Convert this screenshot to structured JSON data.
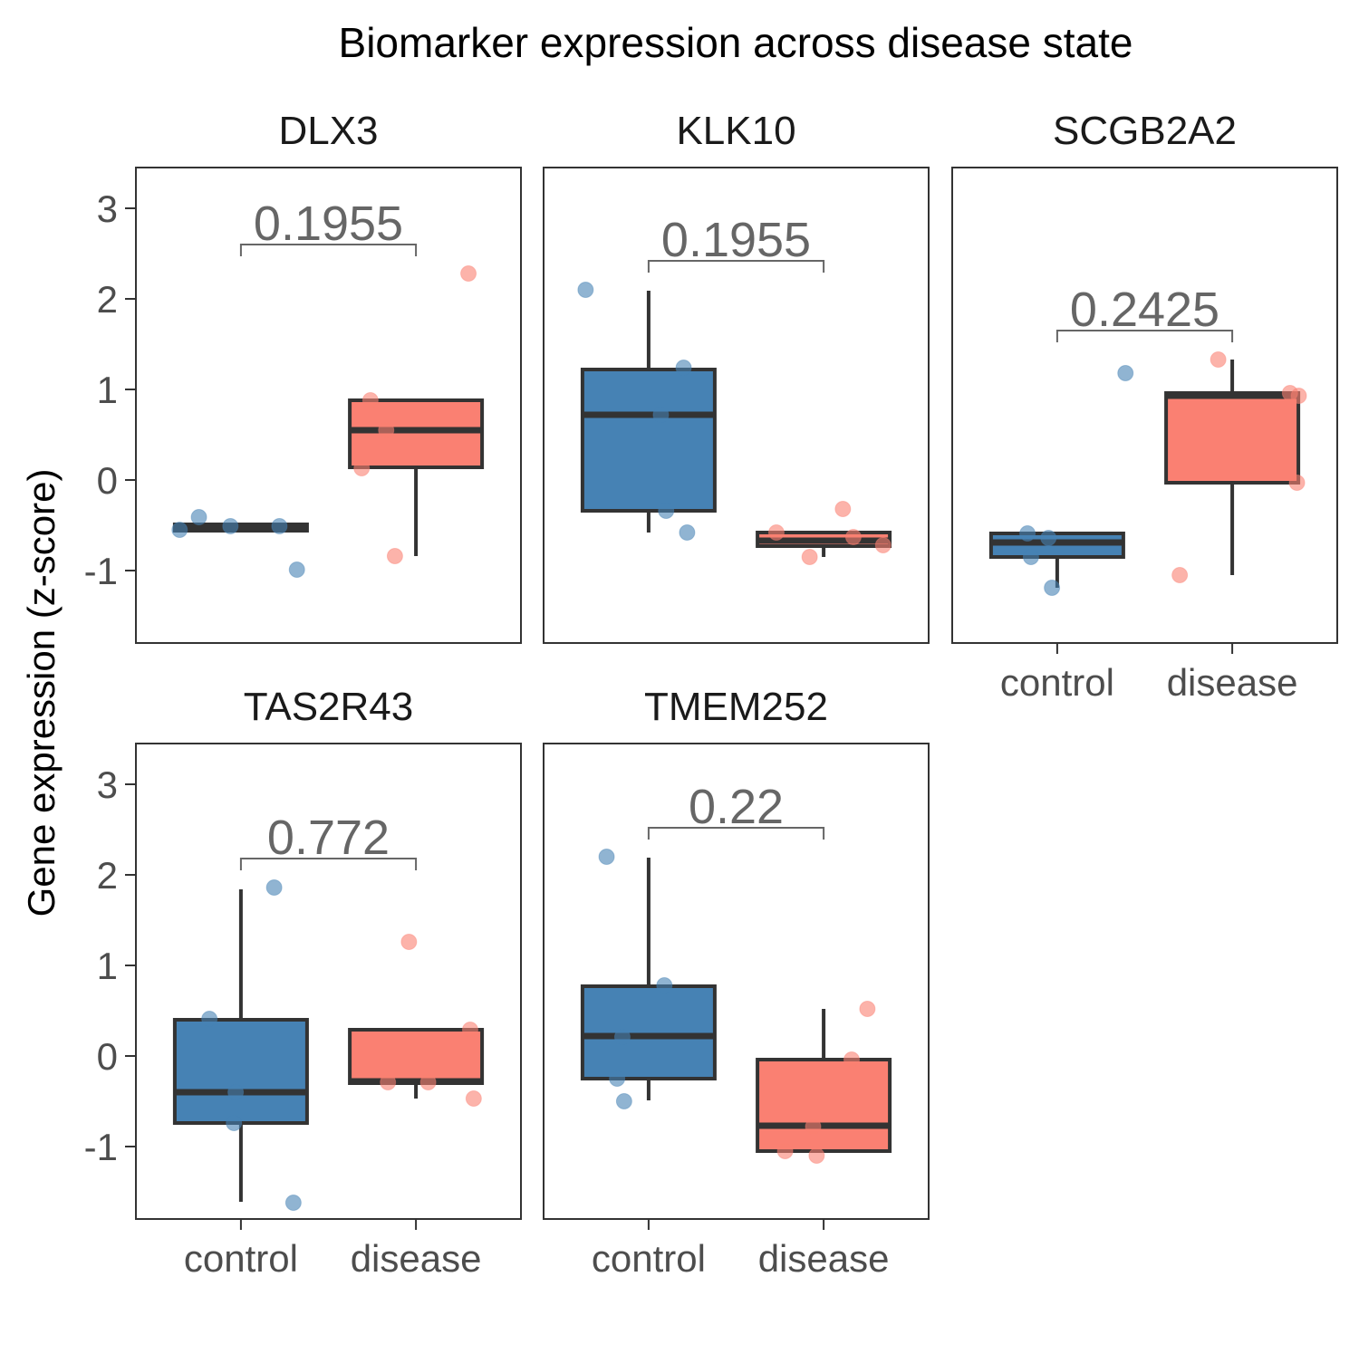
{
  "chart_data": {
    "type": "box",
    "title": "Biomarker expression across disease state",
    "ylabel": "Gene expression (z-score)",
    "xlabel": "",
    "ylim": [
      -1.8,
      3.45
    ],
    "y_ticks": [
      "3",
      "2",
      "1",
      "0",
      "-1"
    ],
    "y_tick_values": [
      3,
      2,
      1,
      0,
      -1
    ],
    "categories": [
      "control",
      "disease"
    ],
    "colors": {
      "control": "#4682B4",
      "disease": "#FA8072",
      "line": "#333333",
      "pval": "#666666",
      "frame": "#333333"
    },
    "panels": [
      {
        "name": "DLX3",
        "pvalue": "0.1955",
        "bracket_y": 2.6,
        "boxes": [
          {
            "group": "control",
            "q1": -0.56,
            "median": -0.53,
            "q3": -0.49,
            "whisker_low": -0.56,
            "whisker_high": -0.49
          },
          {
            "group": "disease",
            "q1": 0.14,
            "median": 0.55,
            "q3": 0.88,
            "whisker_low": -0.84,
            "whisker_high": 0.88
          }
        ],
        "points": [
          {
            "group": "control",
            "x": 0.65,
            "y": -0.55
          },
          {
            "group": "control",
            "x": 0.76,
            "y": -0.41
          },
          {
            "group": "control",
            "x": 0.94,
            "y": -0.51
          },
          {
            "group": "control",
            "x": 1.22,
            "y": -0.51
          },
          {
            "group": "control",
            "x": 1.32,
            "y": -0.99
          },
          {
            "group": "disease",
            "x": 1.69,
            "y": 0.13
          },
          {
            "group": "disease",
            "x": 1.74,
            "y": 0.88
          },
          {
            "group": "disease",
            "x": 1.83,
            "y": 0.55
          },
          {
            "group": "disease",
            "x": 1.88,
            "y": -0.84
          },
          {
            "group": "disease",
            "x": 2.3,
            "y": 2.28
          }
        ]
      },
      {
        "name": "KLK10",
        "pvalue": "0.1955",
        "bracket_y": 2.42,
        "boxes": [
          {
            "group": "control",
            "q1": -0.34,
            "median": 0.72,
            "q3": 1.22,
            "whisker_low": -0.58,
            "whisker_high": 2.09
          },
          {
            "group": "disease",
            "q1": -0.73,
            "median": -0.67,
            "q3": -0.58,
            "whisker_low": -0.85,
            "whisker_high": -0.58
          }
        ],
        "points": [
          {
            "group": "control",
            "x": 0.64,
            "y": 2.1
          },
          {
            "group": "control",
            "x": 1.07,
            "y": 0.72
          },
          {
            "group": "control",
            "x": 1.1,
            "y": -0.34
          },
          {
            "group": "control",
            "x": 1.2,
            "y": 1.24
          },
          {
            "group": "control",
            "x": 1.22,
            "y": -0.58
          },
          {
            "group": "disease",
            "x": 1.73,
            "y": -0.58
          },
          {
            "group": "disease",
            "x": 1.92,
            "y": -0.85
          },
          {
            "group": "disease",
            "x": 2.11,
            "y": -0.32
          },
          {
            "group": "disease",
            "x": 2.17,
            "y": -0.63
          },
          {
            "group": "disease",
            "x": 2.34,
            "y": -0.72
          }
        ]
      },
      {
        "name": "SCGB2A2",
        "pvalue": "0.2425",
        "bracket_y": 1.65,
        "boxes": [
          {
            "group": "control",
            "q1": -0.85,
            "median": -0.69,
            "q3": -0.59,
            "whisker_low": -1.19,
            "whisker_high": -0.59
          },
          {
            "group": "disease",
            "q1": -0.03,
            "median": 0.93,
            "q3": 0.96,
            "whisker_low": -1.05,
            "whisker_high": 1.33
          }
        ],
        "points": [
          {
            "group": "control",
            "x": 0.83,
            "y": -0.59
          },
          {
            "group": "control",
            "x": 0.85,
            "y": -0.85
          },
          {
            "group": "control",
            "x": 0.95,
            "y": -0.64
          },
          {
            "group": "control",
            "x": 0.97,
            "y": -1.19
          },
          {
            "group": "control",
            "x": 1.39,
            "y": 1.18
          },
          {
            "group": "disease",
            "x": 1.7,
            "y": -1.05
          },
          {
            "group": "disease",
            "x": 1.92,
            "y": 1.33
          },
          {
            "group": "disease",
            "x": 2.33,
            "y": 0.96
          },
          {
            "group": "disease",
            "x": 2.37,
            "y": -0.03
          },
          {
            "group": "disease",
            "x": 2.38,
            "y": 0.93
          }
        ]
      },
      {
        "name": "TAS2R43",
        "pvalue": "0.772",
        "bracket_y": 2.18,
        "boxes": [
          {
            "group": "control",
            "q1": -0.74,
            "median": -0.4,
            "q3": 0.4,
            "whisker_low": -1.61,
            "whisker_high": 1.84
          },
          {
            "group": "disease",
            "q1": -0.3,
            "median": -0.28,
            "q3": 0.29,
            "whisker_low": -0.47,
            "whisker_high": 0.29
          }
        ],
        "points": [
          {
            "group": "control",
            "x": 0.82,
            "y": 0.41
          },
          {
            "group": "control",
            "x": 0.96,
            "y": -0.74
          },
          {
            "group": "control",
            "x": 0.97,
            "y": -0.4
          },
          {
            "group": "control",
            "x": 1.19,
            "y": 1.86
          },
          {
            "group": "control",
            "x": 1.3,
            "y": -1.62
          },
          {
            "group": "disease",
            "x": 1.84,
            "y": -0.29
          },
          {
            "group": "disease",
            "x": 2.07,
            "y": -0.29
          },
          {
            "group": "disease",
            "x": 1.96,
            "y": 1.26
          },
          {
            "group": "disease",
            "x": 2.31,
            "y": 0.29
          },
          {
            "group": "disease",
            "x": 2.33,
            "y": -0.47
          }
        ]
      },
      {
        "name": "TMEM252",
        "pvalue": "0.22",
        "bracket_y": 2.52,
        "boxes": [
          {
            "group": "control",
            "q1": -0.25,
            "median": 0.22,
            "q3": 0.77,
            "whisker_low": -0.49,
            "whisker_high": 2.19
          },
          {
            "group": "disease",
            "q1": -1.05,
            "median": -0.77,
            "q3": -0.04,
            "whisker_low": -1.05,
            "whisker_high": 0.52
          }
        ],
        "points": [
          {
            "group": "control",
            "x": 0.76,
            "y": 2.2
          },
          {
            "group": "control",
            "x": 0.85,
            "y": 0.21
          },
          {
            "group": "control",
            "x": 0.82,
            "y": -0.25
          },
          {
            "group": "control",
            "x": 0.86,
            "y": -0.5
          },
          {
            "group": "control",
            "x": 1.09,
            "y": 0.78
          },
          {
            "group": "disease",
            "x": 1.78,
            "y": -1.05
          },
          {
            "group": "disease",
            "x": 1.94,
            "y": -0.78
          },
          {
            "group": "disease",
            "x": 1.96,
            "y": -1.1
          },
          {
            "group": "disease",
            "x": 2.16,
            "y": -0.04
          },
          {
            "group": "disease",
            "x": 2.25,
            "y": 0.52
          }
        ]
      }
    ]
  }
}
